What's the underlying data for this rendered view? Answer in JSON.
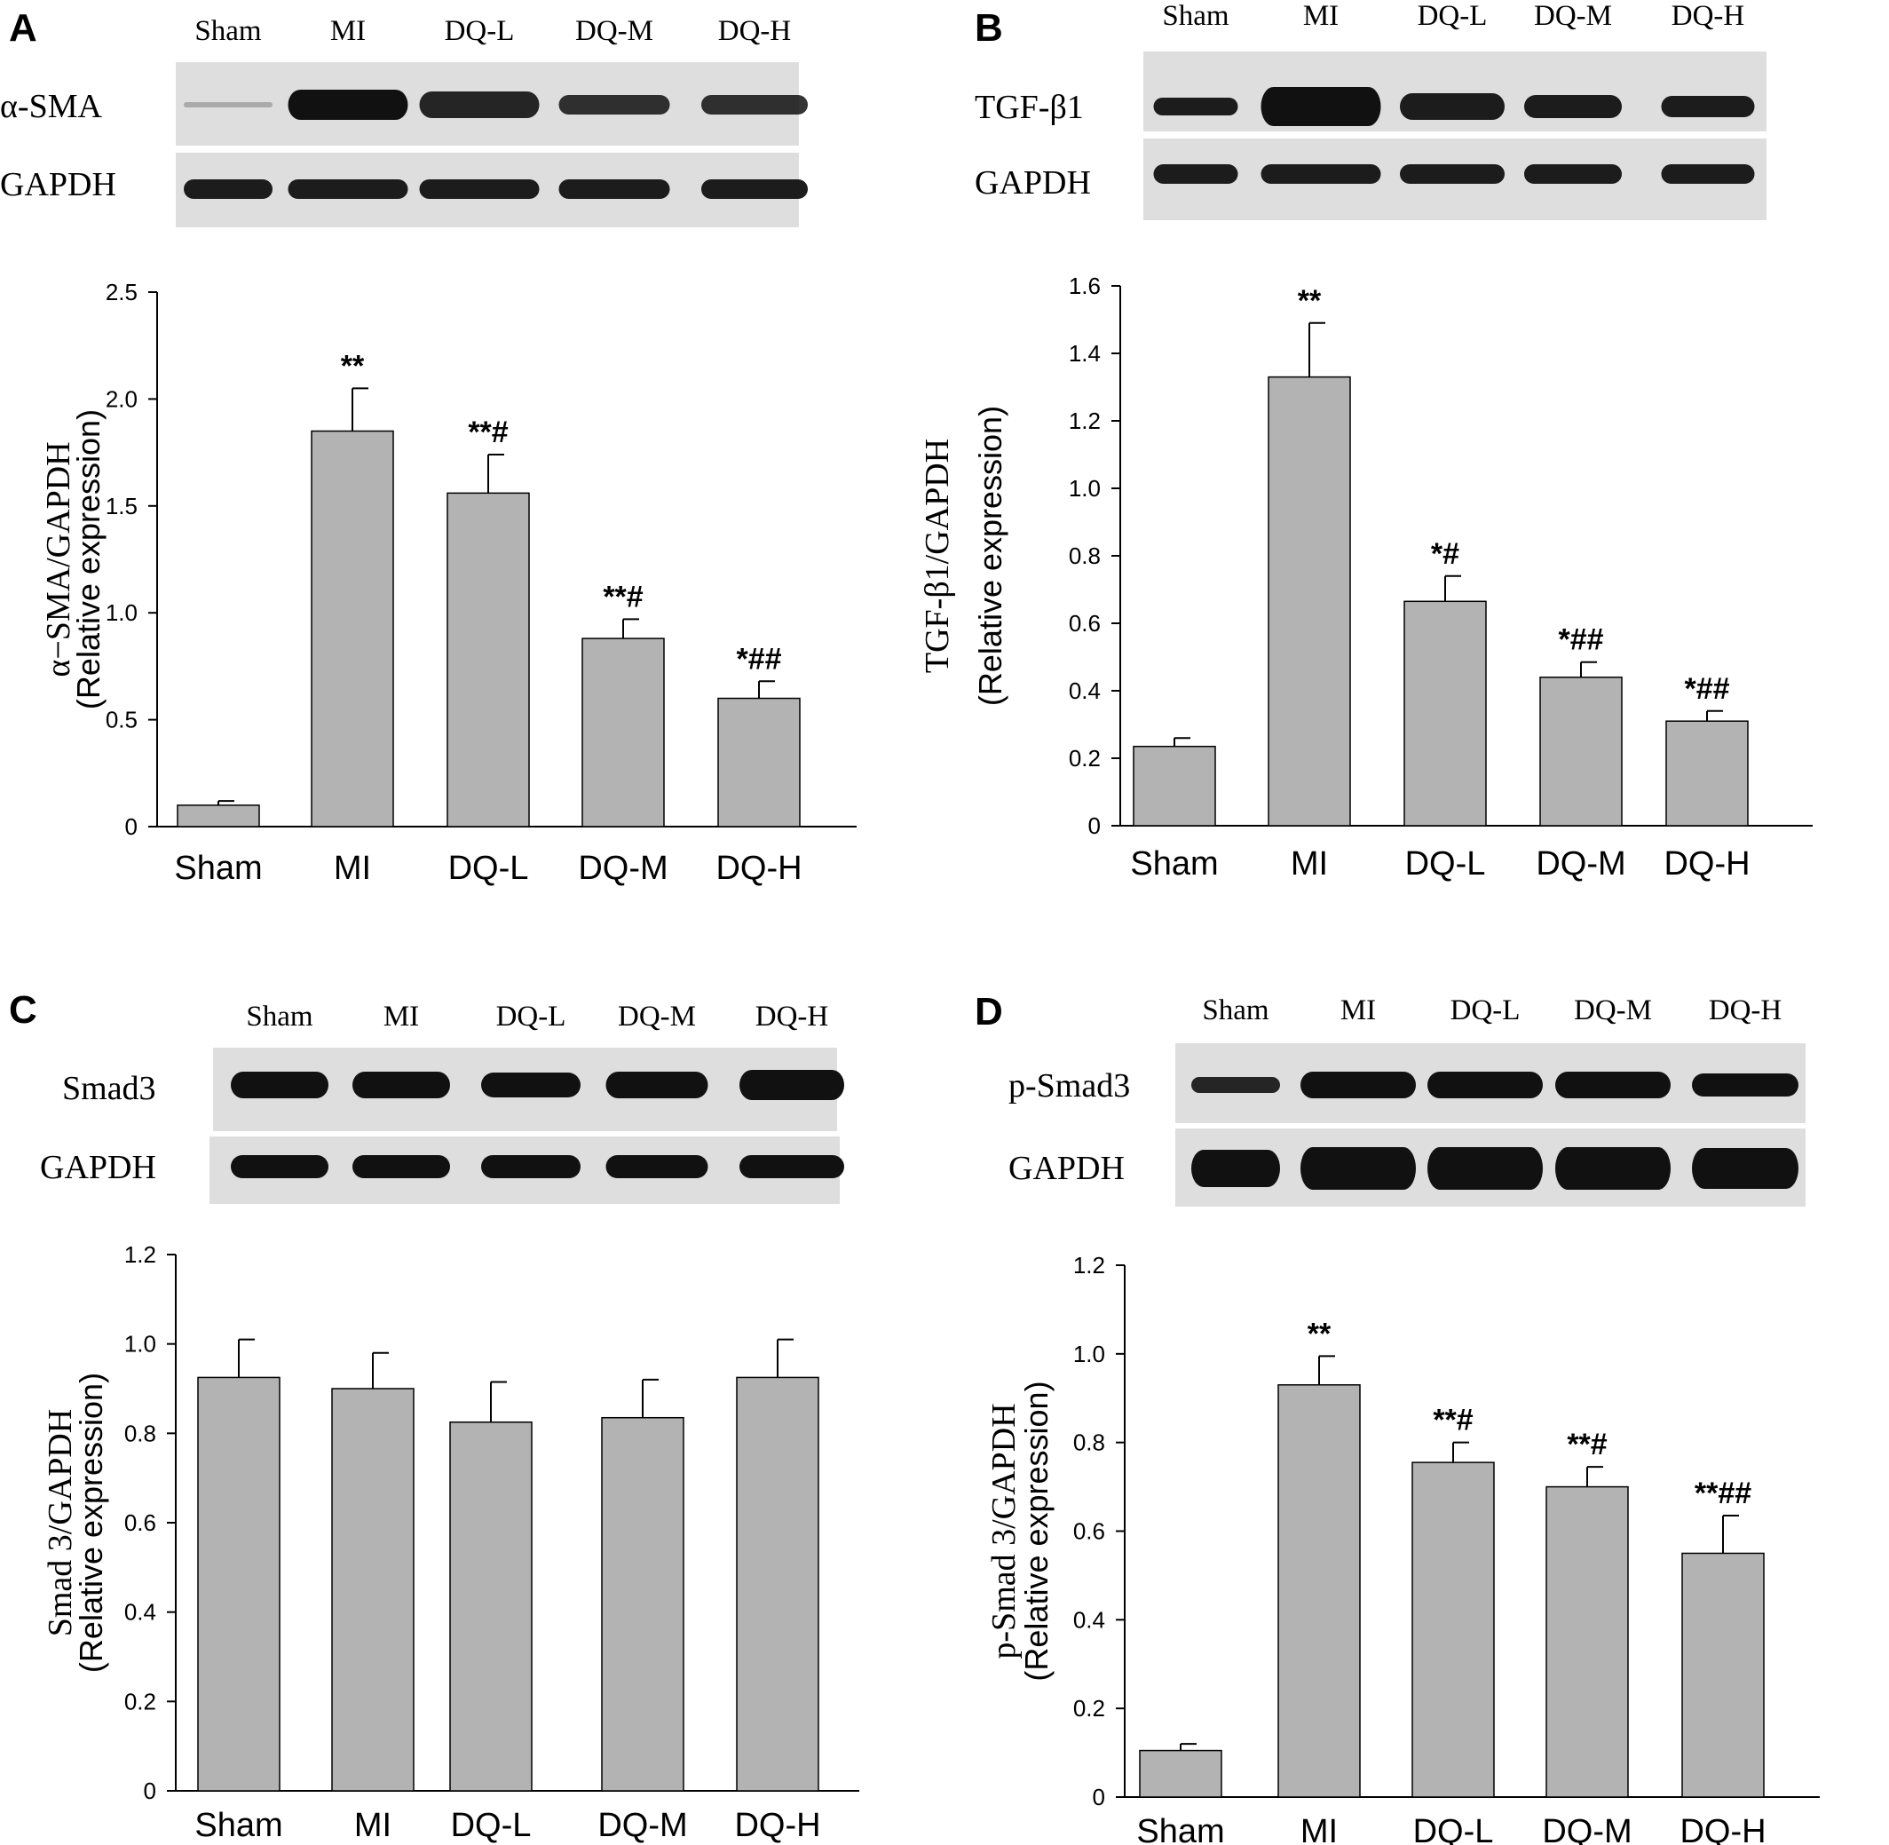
{
  "panels": [
    {
      "letter": "A",
      "blot": {
        "lanes": [
          "Sham",
          "MI",
          "DQ-L",
          "DQ-M",
          "DQ-H"
        ],
        "rows": [
          "α-SMA",
          "GAPDH"
        ]
      },
      "chart": {
        "type": "bar",
        "categories": [
          "Sham",
          "MI",
          "DQ-L",
          "DQ-M",
          "DQ-H"
        ],
        "values": [
          0.1,
          1.85,
          1.56,
          0.88,
          0.6
        ],
        "errors": [
          0.02,
          0.2,
          0.18,
          0.09,
          0.08
        ],
        "annotations": [
          "",
          "**",
          "**#",
          "**#",
          "*##"
        ],
        "ylabel": [
          "α−SMA/GAPDH",
          "(Relative expression)"
        ],
        "ylim": [
          0,
          2.5
        ],
        "ticks": [
          "0",
          "0.5",
          "1.0",
          "1.5",
          "2.0",
          "2.5"
        ],
        "tickValues": [
          0,
          0.5,
          1.0,
          1.5,
          2.0,
          2.5
        ]
      }
    },
    {
      "letter": "B",
      "blot": {
        "lanes": [
          "Sham",
          "MI",
          "DQ-L",
          "DQ-M",
          "DQ-H"
        ],
        "rows": [
          "TGF-β1",
          "GAPDH"
        ]
      },
      "chart": {
        "type": "bar",
        "categories": [
          "Sham",
          "MI",
          "DQ-L",
          "DQ-M",
          "DQ-H"
        ],
        "values": [
          0.235,
          1.33,
          0.665,
          0.44,
          0.31
        ],
        "errors": [
          0.025,
          0.16,
          0.075,
          0.045,
          0.03
        ],
        "annotations": [
          "",
          "**",
          "*#",
          "*##",
          "*##"
        ],
        "ylabel": [
          "TGF-β1/GAPDH",
          "(Relative expression)"
        ],
        "ylim": [
          0,
          1.6
        ],
        "ticks": [
          "0",
          "0.2",
          "0.4",
          "0.6",
          "0.8",
          "1.0",
          "1.2",
          "1.4",
          "1.6"
        ],
        "tickValues": [
          0,
          0.2,
          0.4,
          0.6,
          0.8,
          1.0,
          1.2,
          1.4,
          1.6
        ]
      }
    },
    {
      "letter": "C",
      "blot": {
        "lanes": [
          "Sham",
          "MI",
          "DQ-L",
          "DQ-M",
          "DQ-H"
        ],
        "rows": [
          "Smad3",
          "GAPDH"
        ]
      },
      "chart": {
        "type": "bar",
        "categories": [
          "Sham",
          "MI",
          "DQ-L",
          "DQ-M",
          "DQ-H"
        ],
        "values": [
          0.925,
          0.9,
          0.825,
          0.835,
          0.925
        ],
        "errors": [
          0.085,
          0.08,
          0.09,
          0.085,
          0.085
        ],
        "annotations": [
          "",
          "",
          "",
          "",
          ""
        ],
        "ylabel": [
          "Smad 3/GAPDH",
          "(Relative expression)"
        ],
        "ylim": [
          0,
          1.2
        ],
        "ticks": [
          "0",
          "0.2",
          "0.4",
          "0.6",
          "0.8",
          "1.0",
          "1.2"
        ],
        "tickValues": [
          0,
          0.2,
          0.4,
          0.6,
          0.8,
          1.0,
          1.2
        ]
      }
    },
    {
      "letter": "D",
      "blot": {
        "lanes": [
          "Sham",
          "MI",
          "DQ-L",
          "DQ-M",
          "DQ-H"
        ],
        "rows": [
          "p-Smad3",
          "GAPDH"
        ]
      },
      "chart": {
        "type": "bar",
        "categories": [
          "Sham",
          "MI",
          "DQ-L",
          "DQ-M",
          "DQ-H"
        ],
        "values": [
          0.105,
          0.93,
          0.755,
          0.7,
          0.55
        ],
        "errors": [
          0.015,
          0.065,
          0.045,
          0.045,
          0.085
        ],
        "annotations": [
          "",
          "**",
          "**#",
          "**#",
          "**##"
        ],
        "ylabel": [
          "p-Smad 3/GAPDH",
          "(Relative expression)"
        ],
        "ylim": [
          0,
          1.2
        ],
        "ticks": [
          "0",
          "0.2",
          "0.4",
          "0.6",
          "0.8",
          "1.0",
          "1.2"
        ],
        "tickValues": [
          0,
          0.2,
          0.4,
          0.6,
          0.8,
          1.0,
          1.2
        ]
      }
    }
  ],
  "colors": {
    "bar": "#b3b3b3",
    "axis": "#000000",
    "membrane": "#dedede",
    "band": "#111111"
  }
}
